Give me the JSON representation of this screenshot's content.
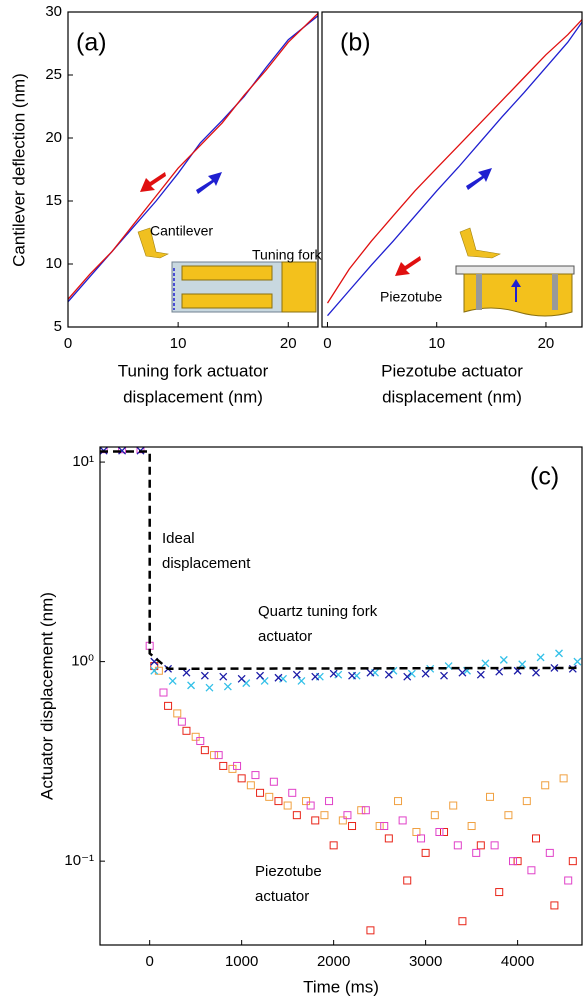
{
  "chart_data": [
    {
      "type": "line",
      "panel_label": "(a)",
      "ylabel": "Cantilever deflection (nm)",
      "xlabel": [
        "Tuning fork actuator",
        "displacement (nm)"
      ],
      "inset_labels": [
        "Cantilever",
        "Tuning fork"
      ],
      "xlim": [
        0,
        22.7
      ],
      "ylim": [
        5,
        30
      ],
      "xticks": [
        0,
        10,
        20
      ],
      "yticks": [
        5,
        10,
        15,
        20,
        25,
        30
      ],
      "x": [
        0,
        2,
        4,
        6,
        8,
        10,
        12,
        14,
        16,
        18,
        20,
        22.7
      ],
      "series": [
        {
          "color": "#1f1fd0",
          "values": [
            7.0,
            9.0,
            11.0,
            13.0,
            15.0,
            17.2,
            19.6,
            21.4,
            23.3,
            25.6,
            27.8,
            29.7
          ]
        },
        {
          "color": "#e01010",
          "values": [
            7.2,
            9.2,
            11.0,
            13.2,
            15.4,
            17.6,
            19.4,
            21.2,
            23.4,
            25.4,
            27.6,
            29.9
          ]
        }
      ]
    },
    {
      "type": "line",
      "panel_label": "(b)",
      "xlabel": [
        "Piezotube actuator",
        "displacement (nm)"
      ],
      "inset_labels": [
        "Piezotube"
      ],
      "xlim": [
        -0.5,
        23.3
      ],
      "ylim": [
        5,
        30
      ],
      "xticks": [
        0,
        10,
        20
      ],
      "x": [
        0,
        2,
        4,
        6,
        8,
        10,
        12,
        14,
        16,
        18,
        20,
        22,
        23.3
      ],
      "series": [
        {
          "color": "#1f1fd0",
          "values": [
            5.9,
            7.9,
            9.9,
            11.8,
            13.8,
            15.8,
            17.7,
            19.7,
            21.7,
            23.6,
            25.6,
            27.6,
            29.2
          ]
        },
        {
          "color": "#e01010",
          "values": [
            6.9,
            9.6,
            11.8,
            13.8,
            15.8,
            17.6,
            19.4,
            21.2,
            23.0,
            24.8,
            26.6,
            28.2,
            29.4
          ]
        }
      ]
    },
    {
      "type": "scatter",
      "panel_label": "(c)",
      "ylabel": "Actuator displacement (nm)",
      "xlabel": [
        "Time (ms)"
      ],
      "ylog": true,
      "xlim": [
        -540,
        4700
      ],
      "ylim": [
        0.038,
        11.9
      ],
      "xticks": [
        0,
        1000,
        2000,
        3000,
        4000
      ],
      "yticks": [
        {
          "value": 0.1,
          "label": "10⁻¹"
        },
        {
          "value": 1,
          "label": "10⁰"
        },
        {
          "value": 10,
          "label": "10¹"
        }
      ],
      "annotations": [
        [
          "Ideal",
          "displacement"
        ],
        [
          "Quartz tuning fork",
          "actuator"
        ],
        [
          "Piezotube",
          "actuator"
        ]
      ],
      "series": [
        {
          "marker": "square",
          "color": "#e82418",
          "x": [
            50,
            200,
            400,
            600,
            800,
            1000,
            1200,
            1400,
            1600,
            1800,
            2000,
            2200,
            2400,
            2600,
            2800,
            3000,
            3200,
            3400,
            3600,
            3800,
            4000,
            4200,
            4400,
            4600
          ],
          "values": [
            0.95,
            0.6,
            0.45,
            0.36,
            0.3,
            0.26,
            0.22,
            0.2,
            0.17,
            0.16,
            0.12,
            0.15,
            0.045,
            0.13,
            0.08,
            0.11,
            0.14,
            0.05,
            0.12,
            0.07,
            0.1,
            0.13,
            0.06,
            0.1
          ]
        },
        {
          "marker": "square",
          "color": "#f0a040",
          "x": [
            100,
            300,
            500,
            700,
            900,
            1100,
            1300,
            1500,
            1700,
            1900,
            2100,
            2300,
            2500,
            2700,
            2900,
            3100,
            3300,
            3500,
            3700,
            3900,
            4100,
            4300,
            4500
          ],
          "values": [
            0.9,
            0.55,
            0.42,
            0.34,
            0.29,
            0.24,
            0.21,
            0.19,
            0.2,
            0.17,
            0.16,
            0.18,
            0.15,
            0.2,
            0.14,
            0.17,
            0.19,
            0.15,
            0.21,
            0.17,
            0.2,
            0.24,
            0.26
          ]
        },
        {
          "marker": "square",
          "color": "#e040c8",
          "x": [
            -500,
            -300,
            -100,
            0,
            150,
            350,
            550,
            750,
            950,
            1150,
            1350,
            1550,
            1750,
            1950,
            2150,
            2350,
            2550,
            2750,
            2950,
            3150,
            3350,
            3550,
            3750,
            3950,
            4150,
            4350,
            4550
          ],
          "values": [
            11.6,
            11.6,
            11.6,
            1.2,
            0.7,
            0.5,
            0.4,
            0.34,
            0.3,
            0.27,
            0.25,
            0.22,
            0.19,
            0.2,
            0.17,
            0.18,
            0.15,
            0.16,
            0.13,
            0.14,
            0.12,
            0.11,
            0.12,
            0.1,
            0.09,
            0.11,
            0.08
          ]
        },
        {
          "marker": "x",
          "color": "#33c0e8",
          "x": [
            50,
            250,
            450,
            650,
            850,
            1050,
            1250,
            1450,
            1650,
            1850,
            2050,
            2250,
            2450,
            2650,
            2850,
            3050,
            3250,
            3450,
            3650,
            3850,
            4050,
            4250,
            4450,
            4650
          ],
          "values": [
            0.9,
            0.8,
            0.76,
            0.74,
            0.75,
            0.78,
            0.8,
            0.82,
            0.8,
            0.84,
            0.86,
            0.85,
            0.88,
            0.9,
            0.87,
            0.92,
            0.95,
            0.9,
            0.98,
            1.02,
            0.97,
            1.05,
            1.1,
            1.0
          ]
        },
        {
          "marker": "x",
          "color": "#1a1aa6",
          "x": [
            -500,
            -300,
            -100,
            50,
            200,
            400,
            600,
            800,
            1000,
            1200,
            1400,
            1600,
            1800,
            2000,
            2200,
            2400,
            2600,
            2800,
            3000,
            3200,
            3400,
            3600,
            3800,
            4000,
            4200,
            4400,
            4600
          ],
          "values": [
            11.4,
            11.4,
            11.4,
            1.0,
            0.92,
            0.88,
            0.85,
            0.84,
            0.82,
            0.85,
            0.83,
            0.86,
            0.84,
            0.87,
            0.85,
            0.88,
            0.86,
            0.84,
            0.87,
            0.85,
            0.88,
            0.86,
            0.89,
            0.9,
            0.88,
            0.93,
            0.92
          ]
        },
        {
          "marker": "dashed",
          "color": "#000000",
          "x": [
            -540,
            0,
            0,
            200,
            4700
          ],
          "values": [
            11.3,
            11.3,
            1.1,
            0.92,
            0.93
          ]
        }
      ]
    }
  ]
}
